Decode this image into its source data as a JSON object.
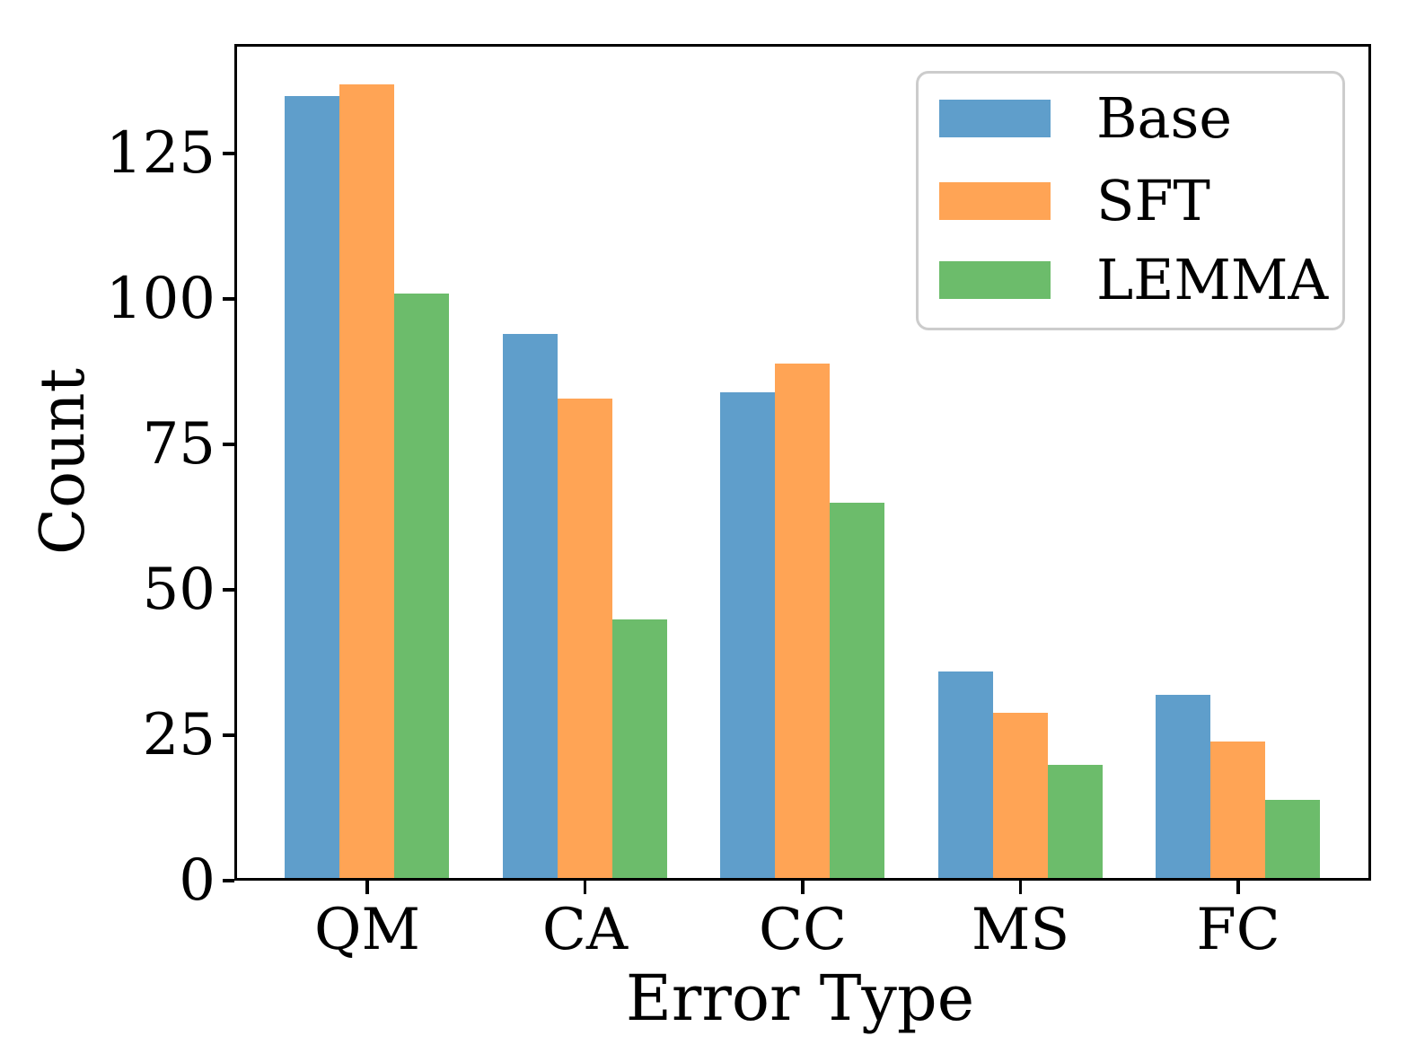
{
  "chart_data": {
    "type": "bar",
    "title": "",
    "xlabel": "Error Type",
    "ylabel": "Count",
    "categories": [
      "QM",
      "CA",
      "CC",
      "MS",
      "FC"
    ],
    "series": [
      {
        "name": "Base",
        "color": "#5F9ECB",
        "values": [
          135,
          94,
          84,
          36,
          32
        ]
      },
      {
        "name": "SFT",
        "color": "#FFA455",
        "values": [
          137,
          83,
          89,
          29,
          24
        ]
      },
      {
        "name": "LEMMA",
        "color": "#6CBC6B",
        "values": [
          101,
          45,
          65,
          20,
          14
        ]
      }
    ],
    "yticks": [
      0,
      25,
      50,
      75,
      100,
      125
    ],
    "ylim": [
      0,
      144
    ],
    "xlim_categories": 5,
    "grid": false,
    "legend_position": "upper right",
    "legend_border_color": "#cccccc",
    "axis_color": "#000000",
    "background_color": "#ffffff"
  }
}
